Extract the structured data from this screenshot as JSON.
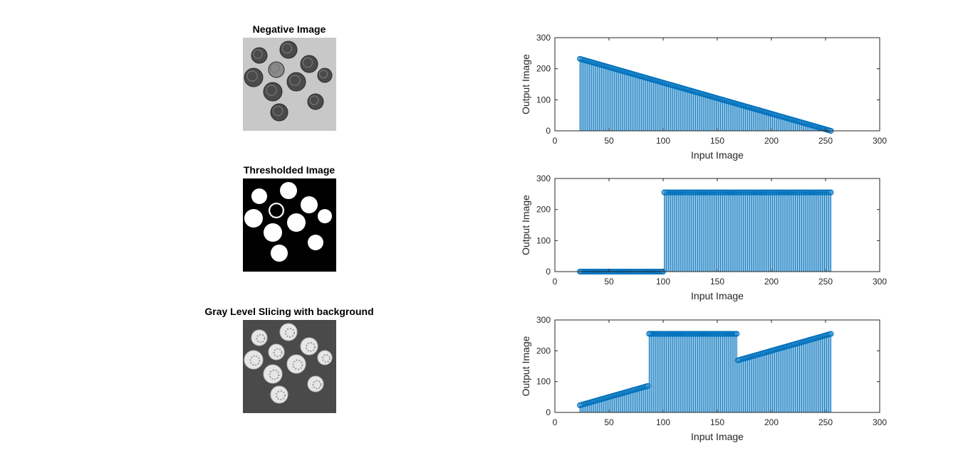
{
  "images": [
    {
      "title": "Negative Image",
      "kind": "negative"
    },
    {
      "title": "Thresholded Image",
      "kind": "threshold"
    },
    {
      "title": "Gray Level Slicing with background",
      "kind": "slicing"
    }
  ],
  "colors": {
    "stem": "#0072BD",
    "axis": "#262626",
    "negative_bg": "#c8c8c8",
    "slicing_bg": "#4a4a4a"
  },
  "chart_data": [
    {
      "type": "stem",
      "name": "negative",
      "title": "",
      "xlabel": "Input Image",
      "ylabel": "Output Image",
      "xlim": [
        0,
        300
      ],
      "ylim": [
        0,
        300
      ],
      "xticks": [
        0,
        50,
        100,
        150,
        200,
        250,
        300
      ],
      "yticks": [
        0,
        100,
        200,
        300
      ],
      "x_range": [
        23,
        255
      ],
      "pieces": [
        {
          "from": 23,
          "to": 255,
          "rule": "255 - x"
        }
      ]
    },
    {
      "type": "stem",
      "name": "threshold",
      "title": "",
      "xlabel": "Input Image",
      "ylabel": "Output Image",
      "xlim": [
        0,
        300
      ],
      "ylim": [
        0,
        300
      ],
      "xticks": [
        0,
        50,
        100,
        150,
        200,
        250,
        300
      ],
      "yticks": [
        0,
        100,
        200,
        300
      ],
      "x_range": [
        23,
        255
      ],
      "pieces": [
        {
          "from": 23,
          "to": 100,
          "value": 0
        },
        {
          "from": 101,
          "to": 255,
          "value": 255
        }
      ]
    },
    {
      "type": "stem",
      "name": "slicing",
      "title": "",
      "xlabel": "Input Image",
      "ylabel": "Output Image",
      "xlim": [
        0,
        300
      ],
      "ylim": [
        0,
        300
      ],
      "xticks": [
        0,
        50,
        100,
        150,
        200,
        250,
        300
      ],
      "yticks": [
        0,
        100,
        200,
        300
      ],
      "x_range": [
        23,
        255
      ],
      "pieces": [
        {
          "from": 23,
          "to": 86,
          "rule": "x"
        },
        {
          "from": 87,
          "to": 168,
          "value": 255
        },
        {
          "from": 169,
          "to": 255,
          "rule": "x"
        }
      ]
    }
  ]
}
